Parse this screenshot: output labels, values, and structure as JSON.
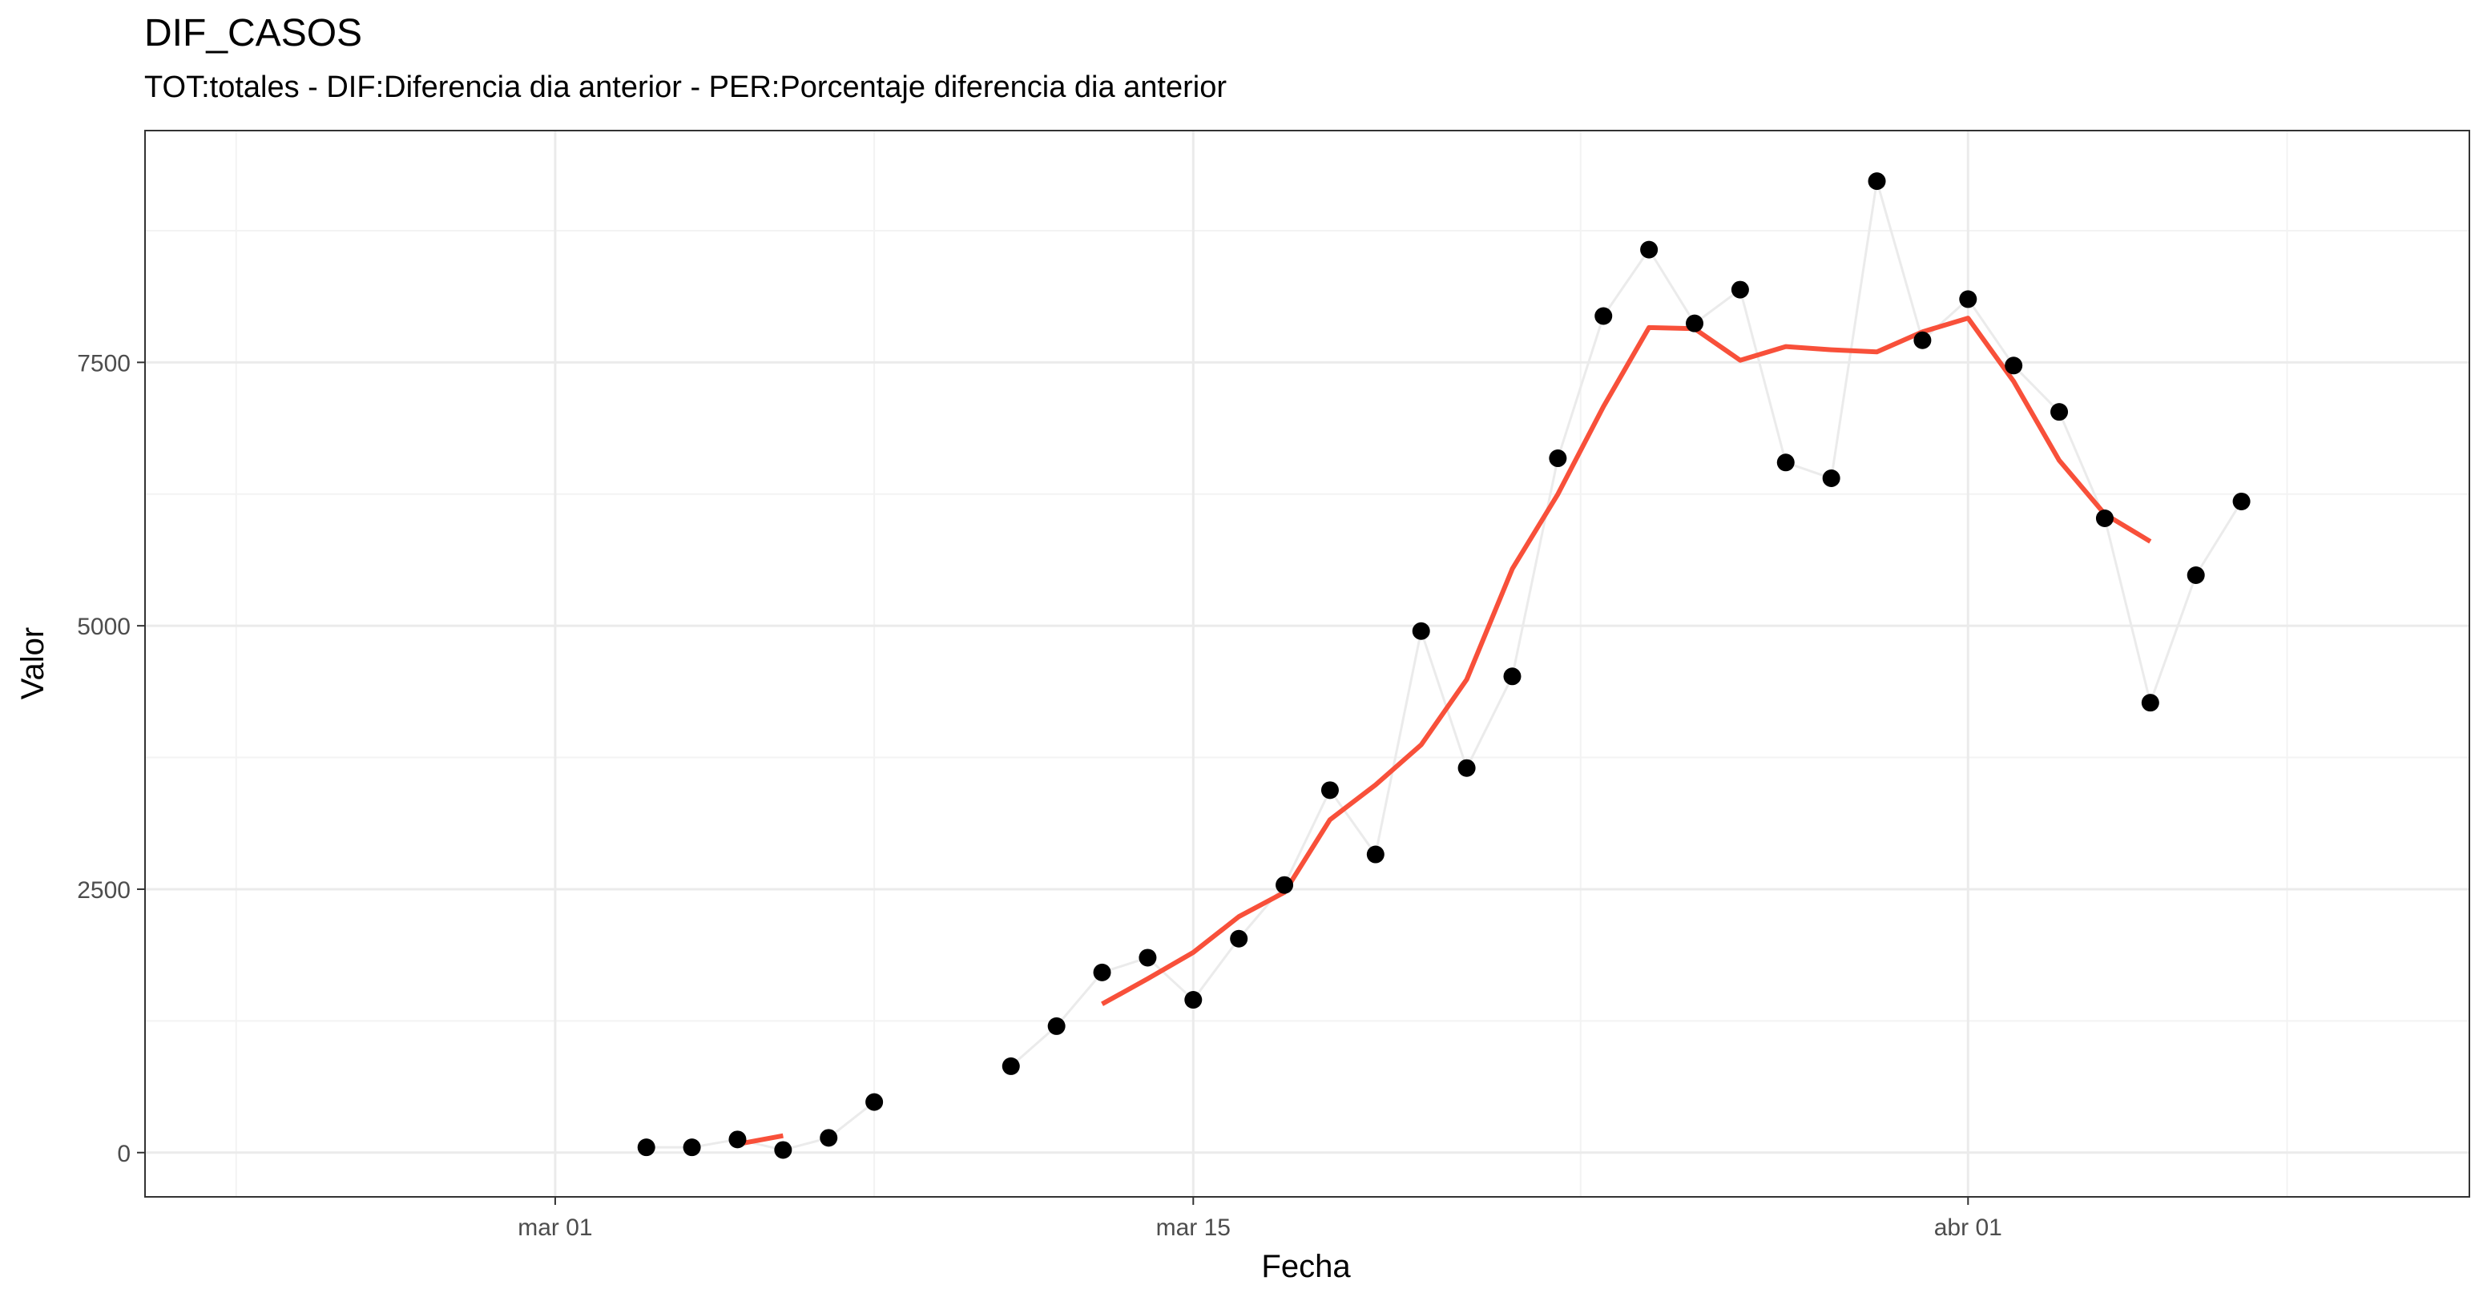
{
  "chart_data": {
    "type": "line",
    "title": "DIF_CASOS",
    "subtitle": "TOT:totales - DIF:Diferencia dia anterior - PER:Porcentaje diferencia dia anterior",
    "xlabel": "Fecha",
    "ylabel": "Valor",
    "x_axis": {
      "type": "date",
      "range": [
        "2020-02-21",
        "2020-04-12"
      ],
      "ticks": [
        {
          "date": "2020-03-01",
          "label": "mar 01"
        },
        {
          "date": "2020-03-15",
          "label": "mar 15"
        },
        {
          "date": "2020-04-01",
          "label": "abr 01"
        }
      ]
    },
    "y_axis": {
      "range": [
        -420,
        9700
      ],
      "ticks": [
        {
          "value": 0,
          "label": "0"
        },
        {
          "value": 2500,
          "label": "2500"
        },
        {
          "value": 5000,
          "label": "5000"
        },
        {
          "value": 7500,
          "label": "7500"
        }
      ]
    },
    "grid": true,
    "colors": {
      "points": "#000000",
      "connect_line": "#ebebeb",
      "smooth_line": "#f8503a",
      "grid_major": "#ebebeb",
      "grid_minor": "#f3f3f3",
      "panel_border": "#333333"
    },
    "series": [
      {
        "type": "points",
        "x": [
          "2020-03-03",
          "2020-03-04",
          "2020-03-05",
          "2020-03-06",
          "2020-03-07",
          "2020-03-08",
          "2020-03-11",
          "2020-03-12",
          "2020-03-13",
          "2020-03-14",
          "2020-03-15",
          "2020-03-16",
          "2020-03-17",
          "2020-03-18",
          "2020-03-19",
          "2020-03-20",
          "2020-03-21",
          "2020-03-22",
          "2020-03-23",
          "2020-03-24",
          "2020-03-25",
          "2020-03-26",
          "2020-03-27",
          "2020-03-28",
          "2020-03-29",
          "2020-03-30",
          "2020-03-31",
          "2020-04-01",
          "2020-04-02",
          "2020-04-03",
          "2020-04-04",
          "2020-04-05",
          "2020-04-06",
          "2020-04-07"
        ],
        "values": [
          50,
          50,
          125,
          25,
          140,
          480,
          820,
          1200,
          1710,
          1850,
          1450,
          2030,
          2540,
          3440,
          2830,
          4950,
          3650,
          4520,
          6590,
          7940,
          8570,
          7870,
          8190,
          6550,
          6400,
          9220,
          7710,
          8100,
          7470,
          7030,
          6020,
          4270,
          5480,
          6180
        ]
      },
      {
        "type": "smooth",
        "segments": [
          {
            "x": [
              "2020-03-05",
              "2020-03-06"
            ],
            "values": [
              80,
              160
            ]
          },
          {
            "x": [
              "2020-03-13",
              "2020-03-14",
              "2020-03-15",
              "2020-03-16",
              "2020-03-17",
              "2020-03-18",
              "2020-03-19",
              "2020-03-20",
              "2020-03-21",
              "2020-03-22",
              "2020-03-23",
              "2020-03-24",
              "2020-03-25",
              "2020-03-26",
              "2020-03-27",
              "2020-03-28",
              "2020-03-29",
              "2020-03-30",
              "2020-03-31",
              "2020-04-01",
              "2020-04-02",
              "2020-04-03",
              "2020-04-04",
              "2020-04-05"
            ],
            "values": [
              1410,
              1650,
              1900,
              2240,
              2470,
              3160,
              3490,
              3870,
              4490,
              5540,
              6250,
              7080,
              7830,
              7820,
              7520,
              7650,
              7620,
              7600,
              7790,
              7920,
              7320,
              6570,
              6060,
              5800
            ]
          }
        ]
      }
    ]
  }
}
